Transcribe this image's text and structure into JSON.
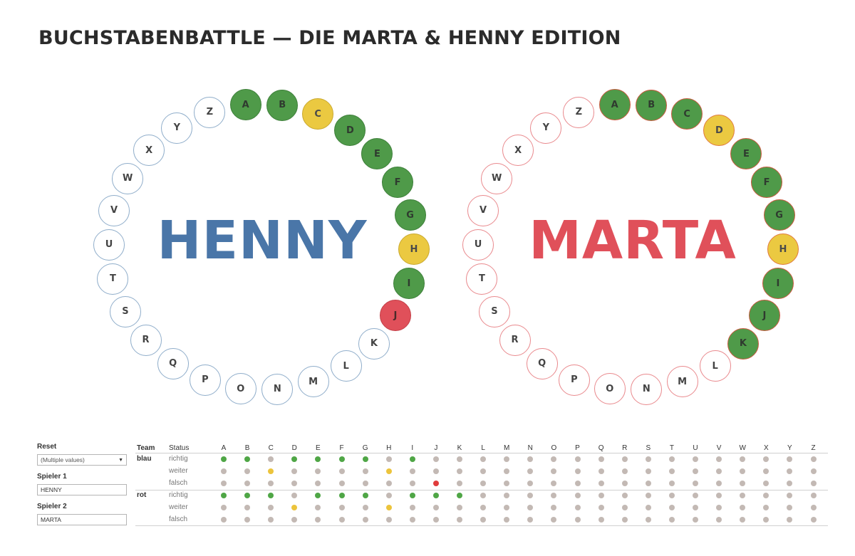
{
  "title": "BUCHSTABENBATTLE — DIE MARTA & HENNY EDITION",
  "letters": [
    "A",
    "B",
    "C",
    "D",
    "E",
    "F",
    "G",
    "H",
    "I",
    "J",
    "K",
    "L",
    "M",
    "N",
    "O",
    "P",
    "Q",
    "R",
    "S",
    "T",
    "U",
    "V",
    "W",
    "X",
    "Y",
    "Z"
  ],
  "colors": {
    "blue_name": "#4a76a8",
    "red_name": "#e0505a",
    "richtig": "#4f9a49",
    "weiter": "#ebc941",
    "falsch": "#e0505a",
    "neutral_dot": "#c3b9b4"
  },
  "players": [
    {
      "team": "blau",
      "name": "HENNY",
      "color": "#4a76a8",
      "letter_status": {
        "A": "richtig",
        "B": "richtig",
        "C": "weiter",
        "D": "richtig",
        "E": "richtig",
        "F": "richtig",
        "G": "richtig",
        "H": "weiter",
        "I": "richtig",
        "J": "falsch"
      }
    },
    {
      "team": "rot",
      "name": "MARTA",
      "color": "#e0505a",
      "letter_status": {
        "A": "richtig",
        "B": "richtig",
        "C": "richtig",
        "D": "weiter",
        "E": "richtig",
        "F": "richtig",
        "G": "richtig",
        "H": "weiter",
        "I": "richtig",
        "J": "richtig",
        "K": "richtig"
      }
    }
  ],
  "filters": {
    "reset_label": "Reset",
    "reset_value": "(Multiple values)",
    "spieler1_label": "Spieler 1",
    "spieler1_value": "HENNY",
    "spieler2_label": "Spieler 2",
    "spieler2_value": "MARTA"
  },
  "table": {
    "team_header": "Team",
    "status_header": "Status",
    "statuses": [
      "richtig",
      "weiter",
      "falsch"
    ]
  }
}
